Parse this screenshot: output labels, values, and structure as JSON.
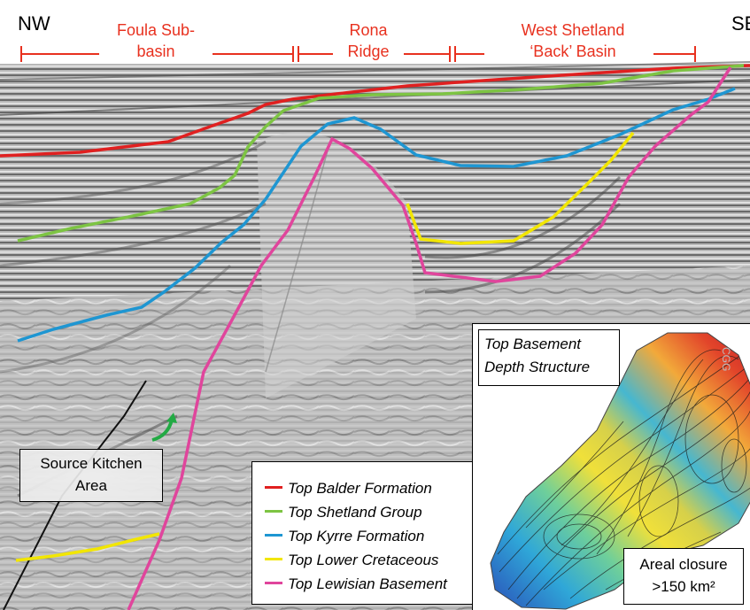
{
  "header": {
    "nw": "NW",
    "se": "SE",
    "regions": [
      {
        "line1": "Foula Sub-",
        "line2": "basin"
      },
      {
        "line1": "Rona",
        "line2": "Ridge"
      },
      {
        "line1": "West Shetland",
        "line2": "‘Back’ Basin"
      }
    ],
    "color": "#e8311f"
  },
  "source_kitchen": {
    "line1": "Source Kitchen",
    "line2": "Area"
  },
  "inset": {
    "title_line1": "Top Basement",
    "title_line2": "Depth Structure",
    "closure_line1": "Areal closure",
    "closure_line2": ">150 km²",
    "watermark": "CGG"
  },
  "legend": [
    {
      "label": "Top Balder Formation",
      "color": "#e02020"
    },
    {
      "label": "Top Shetland Group",
      "color": "#7dc443"
    },
    {
      "label": "Top Kyrre Formation",
      "color": "#1e96d2"
    },
    {
      "label": "Top Lower Cretaceous",
      "color": "#f2e600"
    },
    {
      "label": "Top Lewisian Basement",
      "color": "#e0459c"
    }
  ]
}
